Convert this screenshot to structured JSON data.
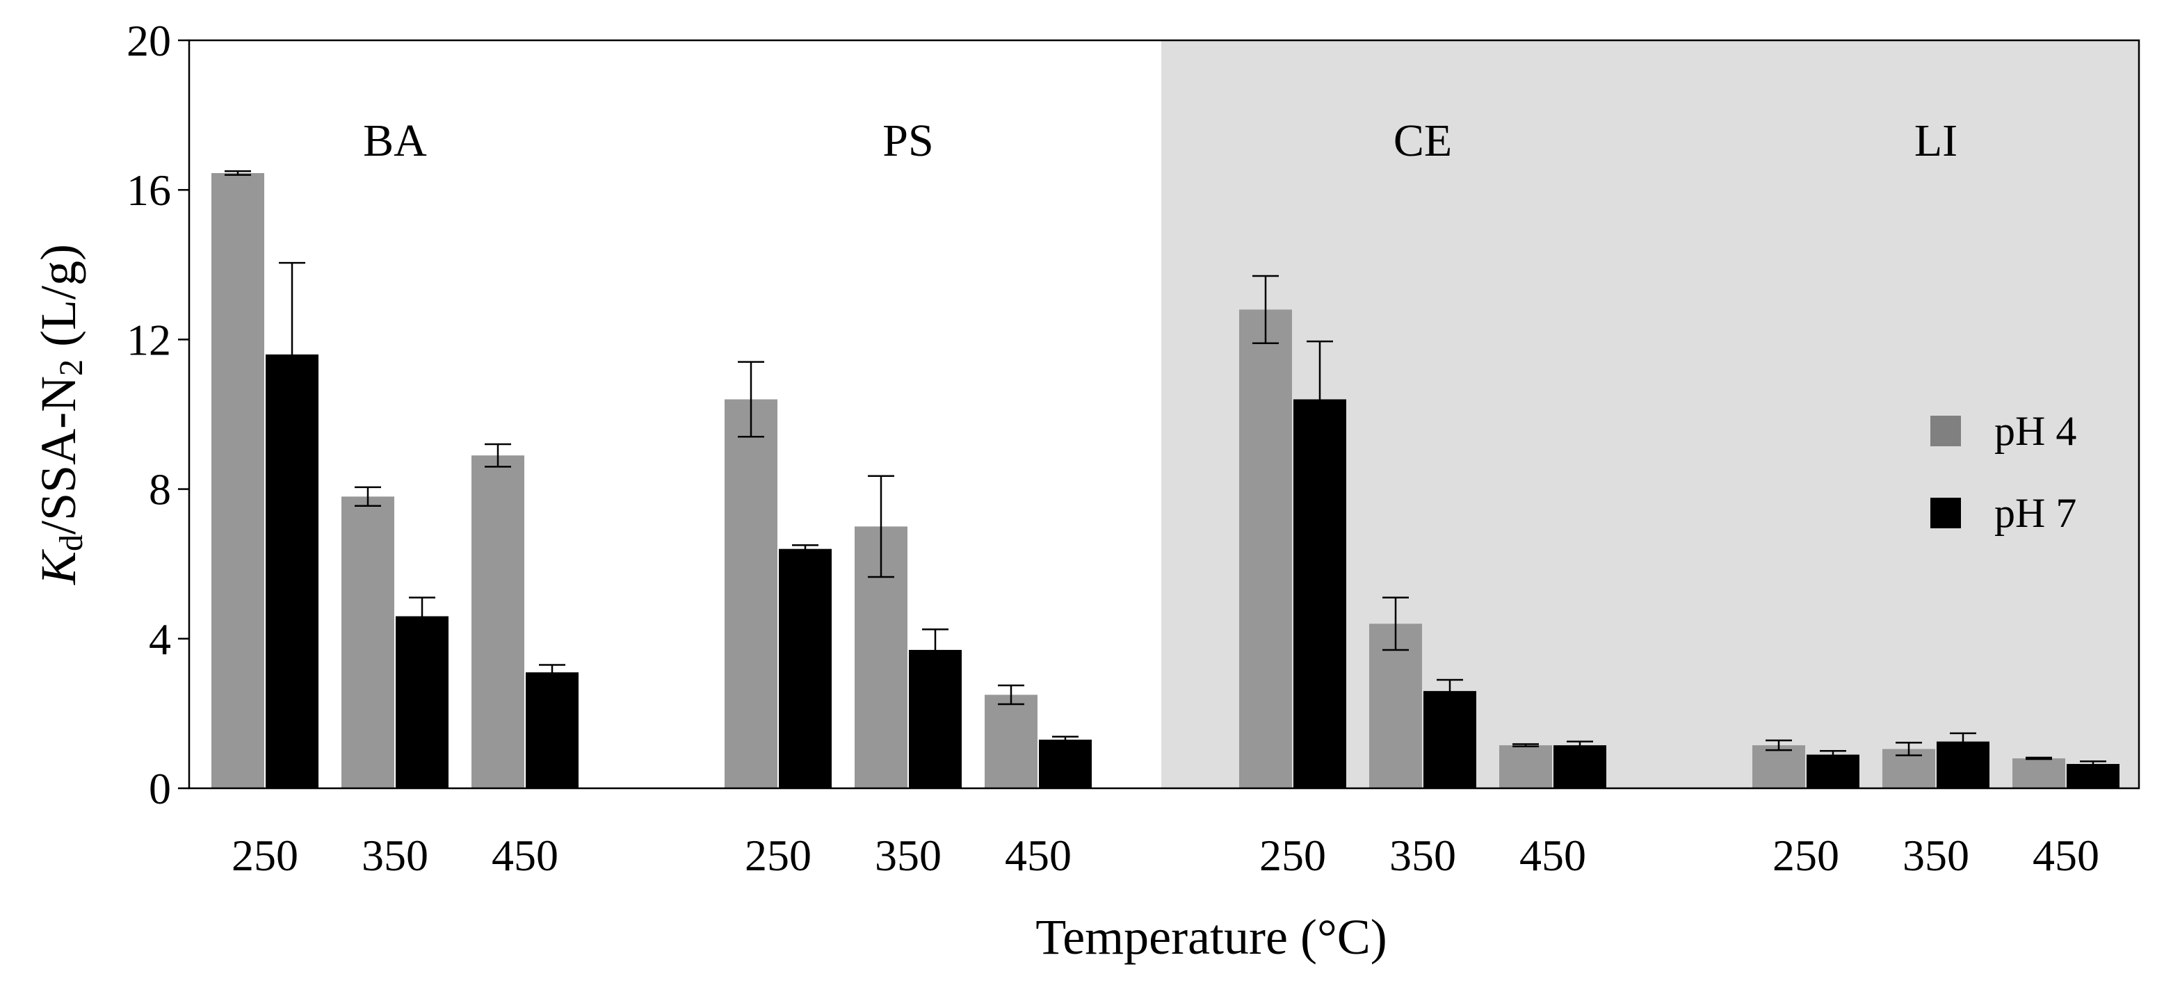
{
  "chart_data": {
    "type": "bar",
    "title": "",
    "xlabel": "Temperature (°C)",
    "ylabel": {
      "base": "K",
      "sub1": "d",
      "mid": "/SSA-N",
      "sub2": "2",
      "tail": " (L/g)"
    },
    "ylim": [
      0,
      20
    ],
    "yticks": [
      0,
      4,
      8,
      12,
      16,
      20
    ],
    "grid": false,
    "legend_position": "right",
    "colors": {
      "pH 4": "#979797",
      "pH 7": "#000000",
      "shaded_region": "#dedede",
      "legend_pH 4": "#808080"
    },
    "shaded_groups": [
      "CE",
      "LI"
    ],
    "groups": [
      {
        "name": "BA",
        "categories": [
          "250",
          "350",
          "450"
        ],
        "series": [
          {
            "name": "pH 4",
            "values": [
              16.45,
              7.8,
              8.9
            ],
            "errors": [
              0.05,
              0.25,
              0.3
            ]
          },
          {
            "name": "pH 7",
            "values": [
              11.6,
              4.6,
              3.1
            ],
            "errors": [
              2.45,
              0.5,
              0.2
            ]
          }
        ]
      },
      {
        "name": "PS",
        "categories": [
          "250",
          "350",
          "450"
        ],
        "series": [
          {
            "name": "pH 4",
            "values": [
              10.4,
              7.0,
              2.5
            ],
            "errors": [
              1.0,
              1.35,
              0.25
            ]
          },
          {
            "name": "pH 7",
            "values": [
              6.4,
              3.7,
              1.3
            ],
            "errors": [
              0.1,
              0.55,
              0.08
            ]
          }
        ]
      },
      {
        "name": "CE",
        "categories": [
          "250",
          "350",
          "450"
        ],
        "series": [
          {
            "name": "pH 4",
            "values": [
              12.8,
              4.4,
              1.15
            ],
            "errors": [
              0.9,
              0.7,
              0.03
            ]
          },
          {
            "name": "pH 7",
            "values": [
              10.4,
              2.6,
              1.15
            ],
            "errors": [
              1.55,
              0.3,
              0.1
            ]
          }
        ]
      },
      {
        "name": "LI",
        "categories": [
          "250",
          "350",
          "450"
        ],
        "series": [
          {
            "name": "pH 4",
            "values": [
              1.15,
              1.05,
              0.8
            ],
            "errors": [
              0.13,
              0.17,
              0.02
            ]
          },
          {
            "name": "pH 7",
            "values": [
              0.9,
              1.25,
              0.65
            ],
            "errors": [
              0.1,
              0.22,
              0.07
            ]
          }
        ]
      }
    ],
    "legend": [
      "pH 4",
      "pH 7"
    ]
  }
}
